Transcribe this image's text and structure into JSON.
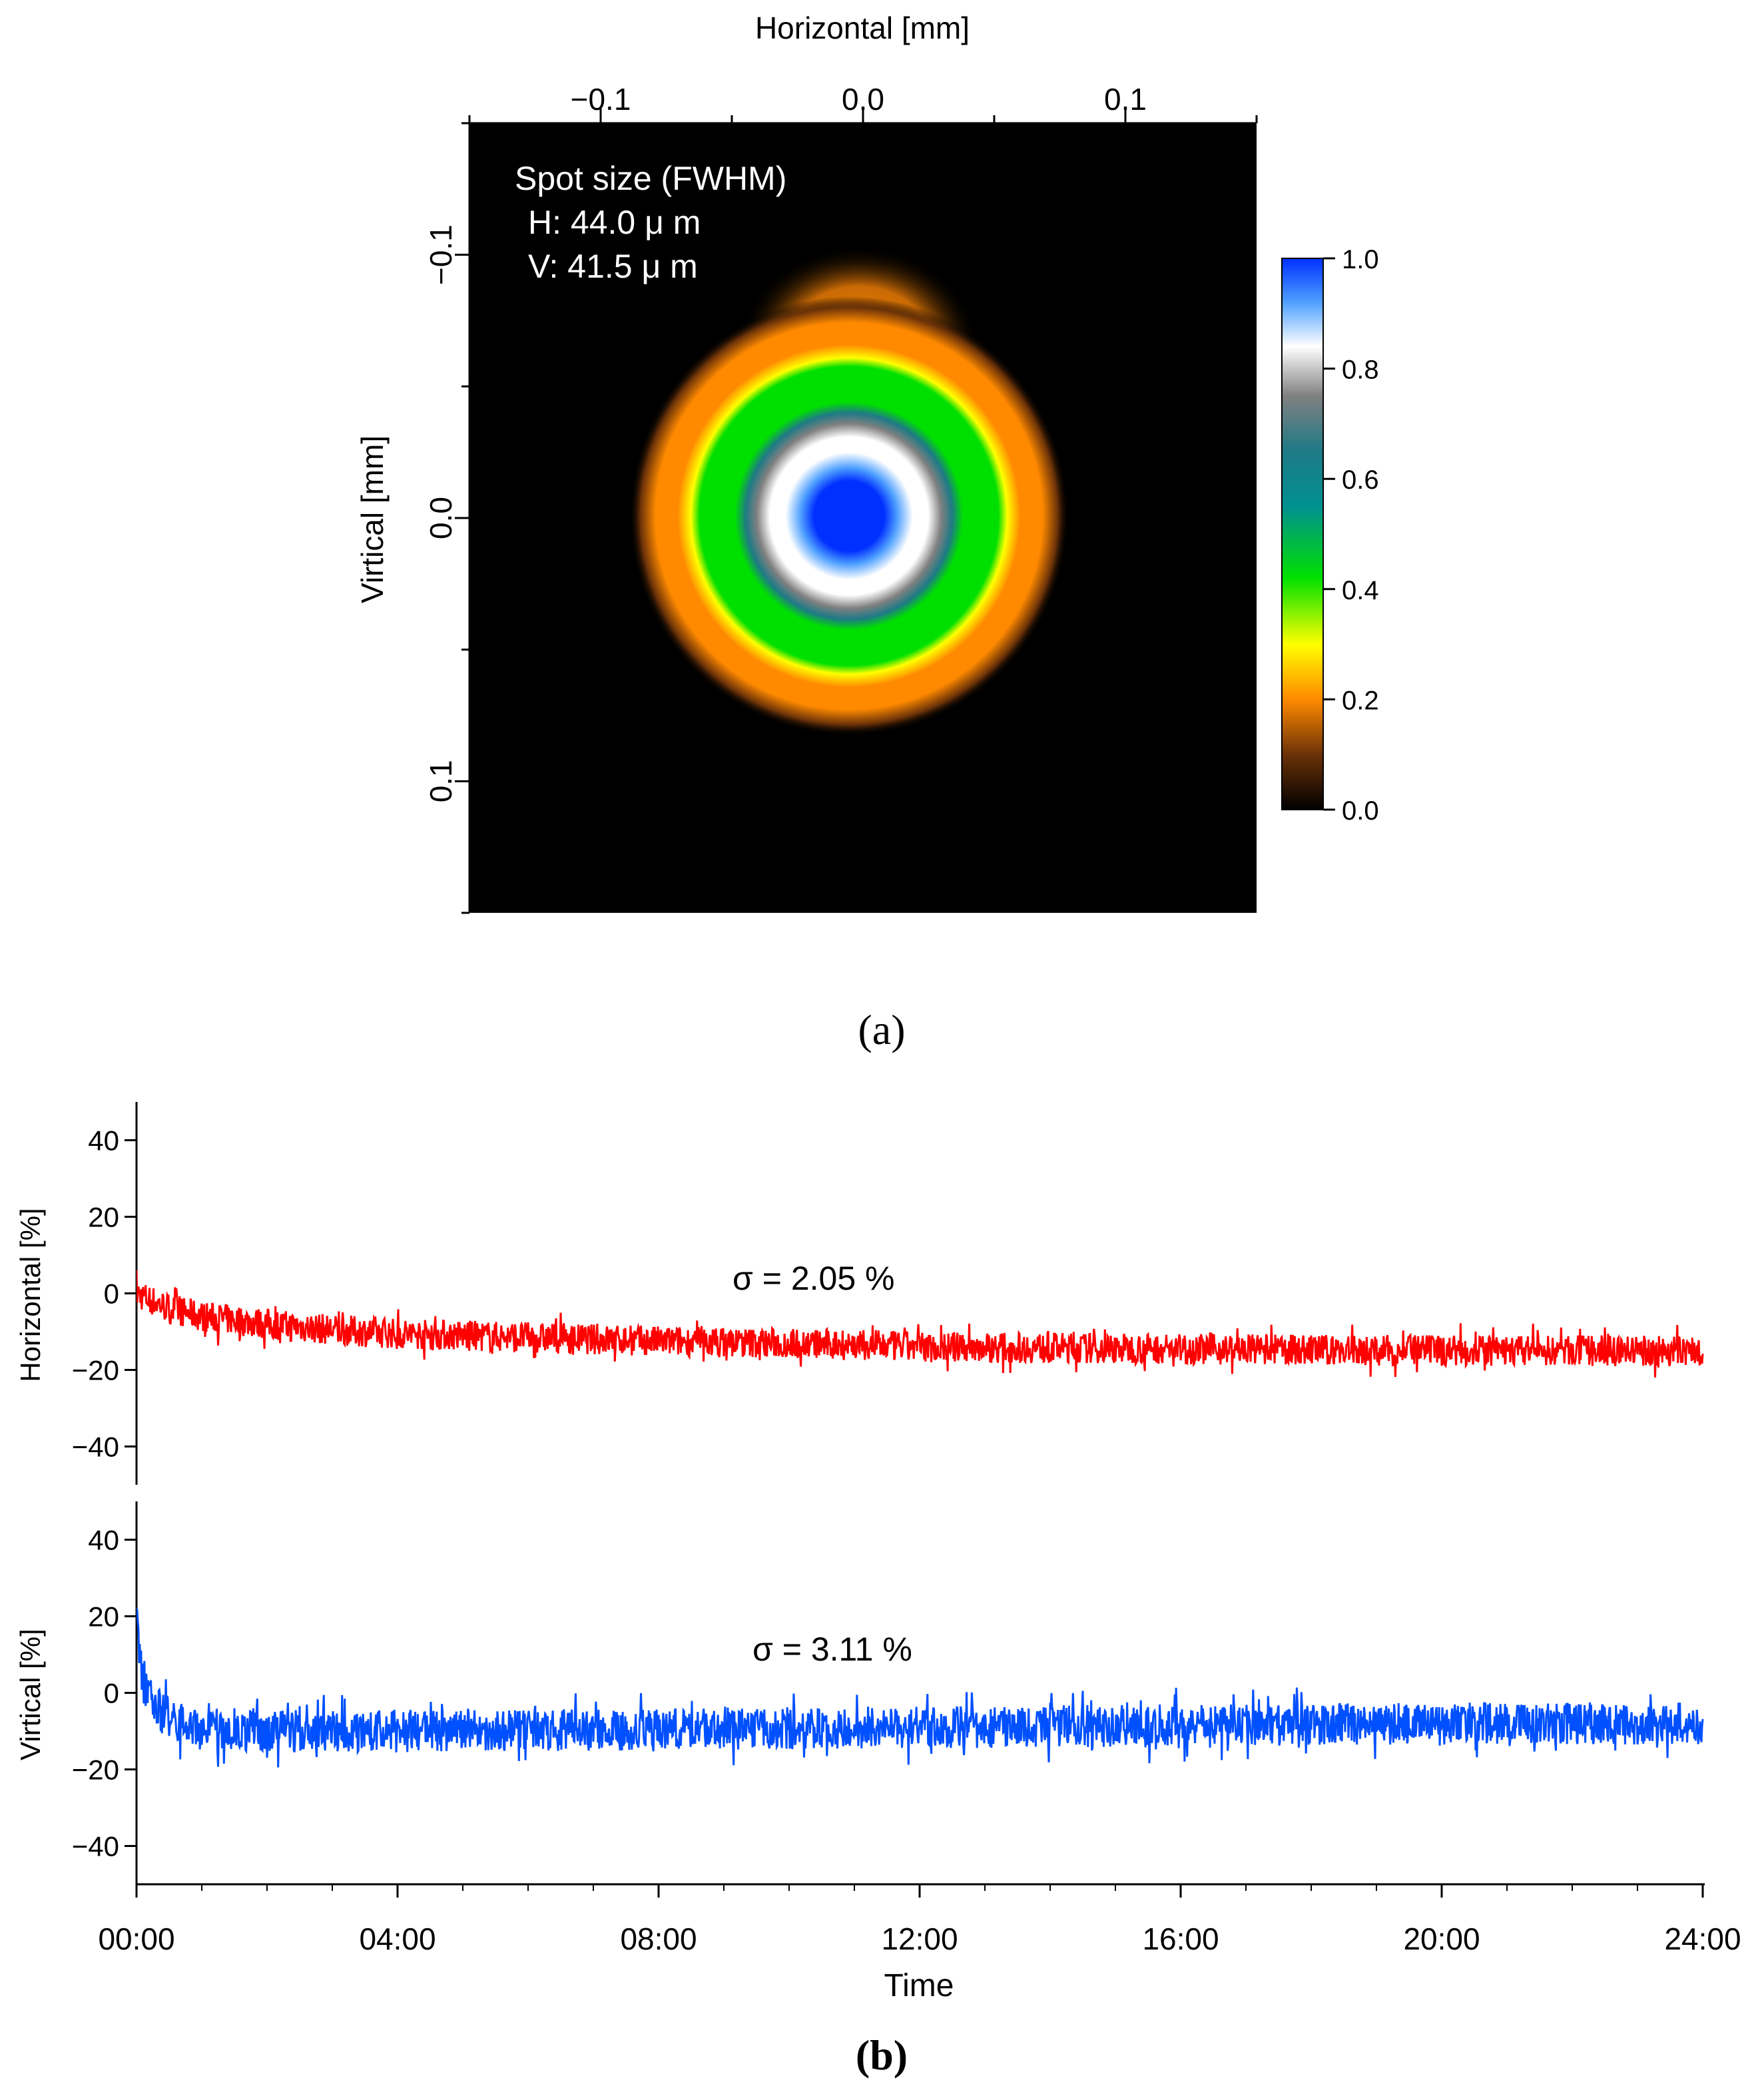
{
  "chart_data": [
    {
      "id": "a",
      "type": "heatmap",
      "panel_label": "(a)",
      "xlabel": "Horizontal [mm]",
      "ylabel": "Virtical [mm]",
      "xlim": [
        -0.15,
        0.15
      ],
      "ylim": [
        -0.15,
        0.15
      ],
      "x_ticks": [
        -0.1,
        0.0,
        0.1
      ],
      "x_tick_labels": [
        "−0.1",
        "0.0",
        "0.1"
      ],
      "y_ticks": [
        -0.1,
        0.0,
        0.1
      ],
      "y_tick_labels": [
        "−0.1",
        "0.0",
        "0.1"
      ],
      "annotation_lines": [
        "Spot size (FWHM)",
        "H: 44.0  μ m",
        "V: 41.5  μ m"
      ],
      "spot": {
        "center": [
          0.0,
          0.0
        ],
        "fwhm_h_um": 44.0,
        "fwhm_v_um": 41.5
      },
      "colorbar": {
        "range": [
          0.0,
          1.0
        ],
        "ticks": [
          0.0,
          0.2,
          0.4,
          0.6,
          0.8,
          1.0
        ],
        "tick_labels": [
          "0.0",
          "0.2",
          "0.4",
          "0.6",
          "0.8",
          "1.0"
        ],
        "stops": [
          {
            "v": 0.0,
            "color": "#000000"
          },
          {
            "v": 0.1,
            "color": "#6b3208"
          },
          {
            "v": 0.2,
            "color": "#ff8a00"
          },
          {
            "v": 0.3,
            "color": "#ffff00"
          },
          {
            "v": 0.42,
            "color": "#00e000"
          },
          {
            "v": 0.55,
            "color": "#009090"
          },
          {
            "v": 0.65,
            "color": "#1e7a86"
          },
          {
            "v": 0.75,
            "color": "#808080"
          },
          {
            "v": 0.84,
            "color": "#ffffff"
          },
          {
            "v": 0.92,
            "color": "#4fa0ff"
          },
          {
            "v": 1.0,
            "color": "#0030ff"
          }
        ]
      }
    },
    {
      "id": "b",
      "type": "line",
      "panel_label": "(b)",
      "xlabel": "Time",
      "x_tick_labels": [
        "00:00",
        "04:00",
        "08:00",
        "12:00",
        "16:00",
        "20:00",
        "24:00"
      ],
      "xlim_hours": [
        0,
        24
      ],
      "subplots": [
        {
          "name": "Horizontal",
          "ylabel": "Horizontal [%]",
          "ylim": [
            -50,
            50
          ],
          "y_ticks": [
            40,
            20,
            0,
            -20,
            -40
          ],
          "y_tick_labels": [
            "40",
            "20",
            "0",
            "−20",
            "−40"
          ],
          "color": "#ff0000",
          "sigma_label": "σ  = 2.05 %",
          "trend_hours": [
            0,
            0.25,
            0.5,
            1,
            2,
            3,
            4,
            6,
            8,
            10,
            12,
            16,
            20,
            24
          ],
          "trend_values": [
            0,
            -2,
            -4,
            -6,
            -8,
            -9.5,
            -10.5,
            -11.5,
            -12.5,
            -13,
            -14,
            -14.5,
            -15,
            -15
          ],
          "noise_pp": 8
        },
        {
          "name": "Virtical",
          "ylabel": "Virtical [%]",
          "ylim": [
            -50,
            50
          ],
          "y_ticks": [
            40,
            20,
            0,
            -20,
            -40
          ],
          "y_tick_labels": [
            "40",
            "20",
            "0",
            "−20",
            "−40"
          ],
          "color": "#0050ff",
          "sigma_label": "σ  = 3.11 %",
          "trend_hours": [
            0,
            0.05,
            0.1,
            0.3,
            0.6,
            1,
            2,
            4,
            8,
            12,
            16,
            20,
            24
          ],
          "trend_values": [
            18,
            10,
            2,
            -4,
            -8,
            -9.5,
            -10,
            -10,
            -9.5,
            -9,
            -8.5,
            -8,
            -8
          ],
          "noise_pp": 11
        }
      ]
    }
  ]
}
